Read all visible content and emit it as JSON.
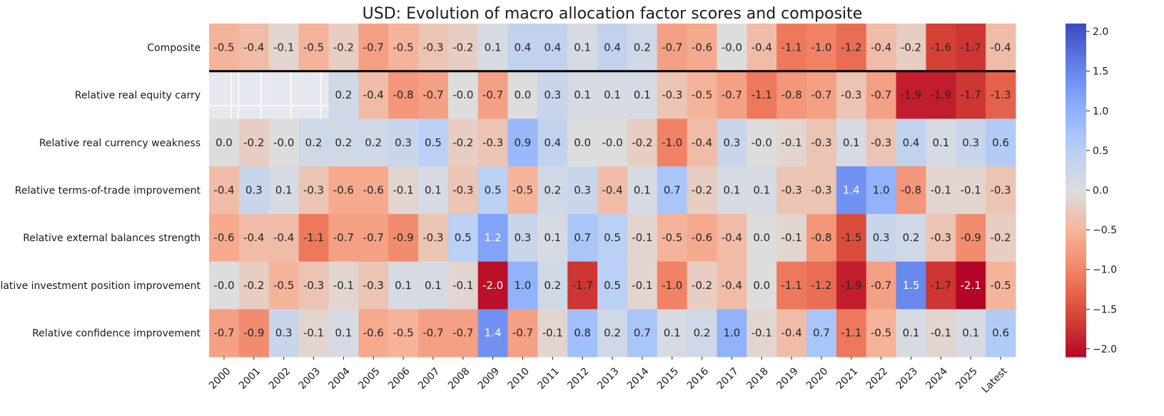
{
  "chart_data": {
    "type": "heatmap",
    "title": "USD: Evolution of macro allocation factor scores and composite",
    "rows": [
      "Composite",
      "Relative real equity carry",
      "Relative real currency weakness",
      "Relative terms-of-trade improvement",
      "Relative external balances strength",
      "Relative investment position improvement",
      "Relative confidence improvement"
    ],
    "columns": [
      "2000",
      "2001",
      "2002",
      "2003",
      "2004",
      "2005",
      "2006",
      "2007",
      "2008",
      "2009",
      "2010",
      "2011",
      "2012",
      "2013",
      "2014",
      "2015",
      "2016",
      "2017",
      "2018",
      "2019",
      "2020",
      "2021",
      "2022",
      "2023",
      "2024",
      "2025",
      "Latest"
    ],
    "values": [
      [
        -0.5,
        -0.4,
        -0.1,
        -0.5,
        -0.2,
        -0.7,
        -0.5,
        -0.3,
        -0.2,
        0.1,
        0.4,
        0.4,
        0.1,
        0.4,
        0.2,
        -0.7,
        -0.6,
        -0.0,
        -0.4,
        -1.1,
        -1.0,
        -1.2,
        -0.4,
        -0.2,
        -1.6,
        -1.7,
        -0.4
      ],
      [
        null,
        null,
        null,
        null,
        0.2,
        -0.4,
        -0.8,
        -0.7,
        -0.0,
        -0.7,
        0.0,
        0.3,
        0.1,
        0.1,
        0.1,
        -0.3,
        -0.5,
        -0.7,
        -1.1,
        -0.8,
        -0.7,
        -0.3,
        -0.7,
        -1.9,
        -1.9,
        -1.7,
        -1.3
      ],
      [
        0.0,
        -0.2,
        -0.0,
        0.2,
        0.2,
        0.2,
        0.3,
        0.5,
        -0.2,
        -0.3,
        0.9,
        0.4,
        0.0,
        -0.0,
        -0.2,
        -1.0,
        -0.4,
        0.3,
        -0.0,
        -0.1,
        -0.3,
        0.1,
        -0.3,
        0.4,
        0.1,
        0.3,
        0.6
      ],
      [
        -0.4,
        0.3,
        0.1,
        -0.3,
        -0.6,
        -0.6,
        -0.1,
        0.1,
        -0.3,
        0.5,
        -0.5,
        0.2,
        0.3,
        -0.4,
        0.1,
        0.7,
        -0.2,
        0.1,
        0.1,
        -0.3,
        -0.3,
        1.4,
        1.0,
        -0.8,
        -0.1,
        -0.1,
        -0.3
      ],
      [
        -0.6,
        -0.4,
        -0.4,
        -1.1,
        -0.7,
        -0.7,
        -0.9,
        -0.3,
        0.5,
        1.2,
        0.3,
        0.1,
        0.7,
        0.5,
        -0.1,
        -0.5,
        -0.6,
        -0.4,
        0.0,
        -0.1,
        -0.8,
        -1.5,
        0.3,
        0.2,
        -0.3,
        -0.9,
        -0.2
      ],
      [
        -0.0,
        -0.2,
        -0.5,
        -0.3,
        -0.1,
        -0.3,
        0.1,
        0.1,
        -0.1,
        -2.0,
        1.0,
        0.2,
        -1.7,
        0.5,
        -0.1,
        -1.0,
        -0.2,
        -0.4,
        0.0,
        -1.1,
        -1.2,
        -1.9,
        -0.7,
        1.5,
        -1.7,
        -2.1,
        -0.5
      ],
      [
        -0.7,
        -0.9,
        0.3,
        -0.1,
        0.1,
        -0.6,
        -0.5,
        -0.7,
        -0.7,
        1.4,
        -0.7,
        -0.1,
        0.8,
        0.2,
        0.7,
        0.1,
        0.2,
        1.0,
        -0.1,
        -0.4,
        0.7,
        -1.1,
        -0.5,
        0.1,
        -0.1,
        0.1,
        0.6
      ]
    ],
    "vmin": -2.1,
    "vmax": 2.1,
    "colormap": "coolwarm_r",
    "colorbar_ticks": [
      "2.0",
      "1.5",
      "1.0",
      "0.5",
      "0.0",
      "−0.5",
      "−1.0",
      "−1.5",
      "−2.0"
    ],
    "colorbar_tick_values": [
      2.0,
      1.5,
      1.0,
      0.5,
      0.0,
      -0.5,
      -1.0,
      -1.5,
      -2.0
    ],
    "missing_color": "#e6e8f0",
    "separator_after_row": 0
  }
}
